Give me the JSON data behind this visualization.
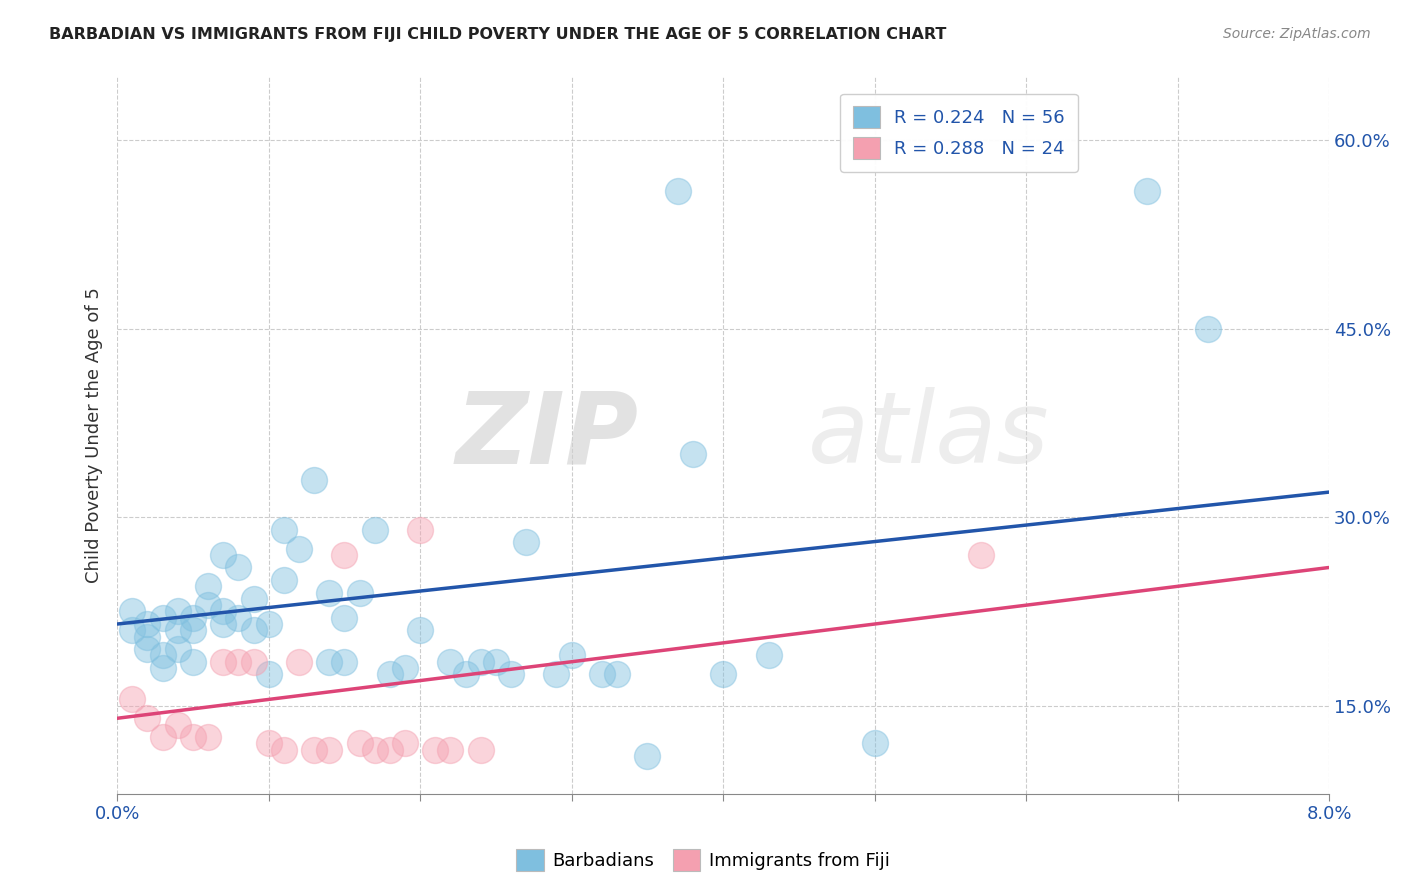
{
  "title": "BARBADIAN VS IMMIGRANTS FROM FIJI CHILD POVERTY UNDER THE AGE OF 5 CORRELATION CHART",
  "source": "Source: ZipAtlas.com",
  "ylabel": "Child Poverty Under the Age of 5",
  "xlim": [
    0.0,
    0.08
  ],
  "ylim": [
    0.08,
    0.65
  ],
  "yticks": [
    0.15,
    0.3,
    0.45,
    0.6
  ],
  "ytick_labels": [
    "15.0%",
    "30.0%",
    "45.0%",
    "60.0%"
  ],
  "grid_yticks": [
    0.15,
    0.3,
    0.45,
    0.6
  ],
  "xtick_positions": [
    0.0,
    0.01,
    0.02,
    0.03,
    0.04,
    0.05,
    0.06,
    0.07,
    0.08
  ],
  "legend_R1": "R = 0.224",
  "legend_N1": "N = 56",
  "legend_R2": "R = 0.288",
  "legend_N2": "N = 24",
  "blue_color": "#7fbfdf",
  "pink_color": "#f4a0b0",
  "blue_line_color": "#2255aa",
  "pink_line_color": "#dd4477",
  "watermark_zip": "ZIP",
  "watermark_atlas": "atlas",
  "blue_scatter_x": [
    0.001,
    0.001,
    0.002,
    0.002,
    0.002,
    0.003,
    0.003,
    0.003,
    0.004,
    0.004,
    0.004,
    0.005,
    0.005,
    0.005,
    0.006,
    0.006,
    0.007,
    0.007,
    0.007,
    0.008,
    0.008,
    0.009,
    0.009,
    0.01,
    0.01,
    0.011,
    0.011,
    0.012,
    0.013,
    0.014,
    0.014,
    0.015,
    0.015,
    0.016,
    0.017,
    0.018,
    0.019,
    0.02,
    0.022,
    0.023,
    0.024,
    0.025,
    0.026,
    0.027,
    0.029,
    0.03,
    0.032,
    0.033,
    0.035,
    0.037,
    0.038,
    0.04,
    0.043,
    0.05,
    0.068,
    0.072
  ],
  "blue_scatter_y": [
    0.225,
    0.21,
    0.215,
    0.205,
    0.195,
    0.22,
    0.19,
    0.18,
    0.195,
    0.21,
    0.225,
    0.185,
    0.21,
    0.22,
    0.23,
    0.245,
    0.215,
    0.225,
    0.27,
    0.22,
    0.26,
    0.21,
    0.235,
    0.175,
    0.215,
    0.25,
    0.29,
    0.275,
    0.33,
    0.24,
    0.185,
    0.22,
    0.185,
    0.24,
    0.29,
    0.175,
    0.18,
    0.21,
    0.185,
    0.175,
    0.185,
    0.185,
    0.175,
    0.28,
    0.175,
    0.19,
    0.175,
    0.175,
    0.11,
    0.56,
    0.35,
    0.175,
    0.19,
    0.12,
    0.56,
    0.45
  ],
  "pink_scatter_x": [
    0.001,
    0.002,
    0.003,
    0.004,
    0.005,
    0.006,
    0.007,
    0.008,
    0.009,
    0.01,
    0.011,
    0.012,
    0.013,
    0.014,
    0.015,
    0.016,
    0.017,
    0.018,
    0.019,
    0.02,
    0.021,
    0.022,
    0.024,
    0.057
  ],
  "pink_scatter_y": [
    0.155,
    0.14,
    0.125,
    0.135,
    0.125,
    0.125,
    0.185,
    0.185,
    0.185,
    0.12,
    0.115,
    0.185,
    0.115,
    0.115,
    0.27,
    0.12,
    0.115,
    0.115,
    0.12,
    0.29,
    0.115,
    0.115,
    0.115,
    0.27
  ],
  "blue_trend_x": [
    0.0,
    0.08
  ],
  "blue_trend_y": [
    0.215,
    0.32
  ],
  "pink_trend_x": [
    0.0,
    0.08
  ],
  "pink_trend_y": [
    0.14,
    0.26
  ]
}
